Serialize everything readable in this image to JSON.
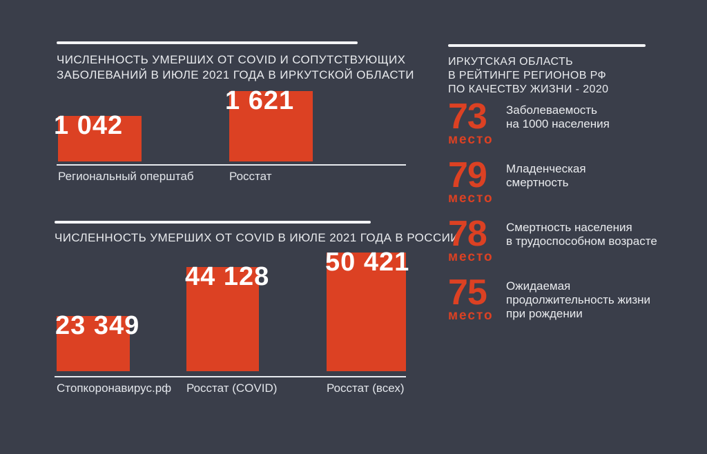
{
  "colors": {
    "background": "#3a3e4a",
    "accent_red": "#dc4123",
    "text_light": "#e9ebee",
    "bar_number_white": "#ffffff",
    "rule_white": "#f3f4f6"
  },
  "chart_data": [
    {
      "type": "bar",
      "title": "ЧИСЛЕННОСТЬ УМЕРШИХ ОТ COVID И СОПУТСТВУЮЩИХ\nЗАБОЛЕВАНИЙ В ИЮЛЕ 2021 ГОДА В ИРКУТСКОЙ ОБЛАСТИ",
      "categories": [
        "Региональный оперштаб",
        "Росстат"
      ],
      "values": [
        1042,
        1621
      ],
      "value_labels": [
        "1 042",
        "1 621"
      ],
      "xlabel": "",
      "ylabel": "",
      "bar_color": "#dc4123",
      "value_label_position": "inside-top-left",
      "axes": "none",
      "grid": false,
      "legend": false
    },
    {
      "type": "bar",
      "title": "ЧИСЛЕННОСТЬ УМЕРШИХ ОТ COVID В ИЮЛЕ 2021 ГОДА В РОССИИ",
      "categories": [
        "Стопкоронавирус.рф",
        "Росстат (COVID)",
        "Росстат (всех)"
      ],
      "values": [
        23349,
        44128,
        50421
      ],
      "value_labels": [
        "23 349",
        "44 128",
        "50 421"
      ],
      "xlabel": "",
      "ylabel": "",
      "bar_color": "#dc4123",
      "value_label_position": "inside-top-left",
      "axes": "none",
      "grid": false,
      "legend": false
    }
  ],
  "ranking": {
    "title": "ИРКУТСКАЯ ОБЛАСТЬ\nВ РЕЙТИНГЕ РЕГИОНОВ РФ\nПО КАЧЕСТВУ ЖИЗНИ - 2020",
    "unit_label": "место",
    "items": [
      {
        "rank": "73",
        "label": "Заболеваемость\nна 1000 населения"
      },
      {
        "rank": "79",
        "label": "Младенческая\nсмертность"
      },
      {
        "rank": "78",
        "label": "Смертность населения\nв трудоспособном возрасте"
      },
      {
        "rank": "75",
        "label": "Ожидаемая\nпродолжительность жизни\nпри рождении"
      }
    ]
  }
}
